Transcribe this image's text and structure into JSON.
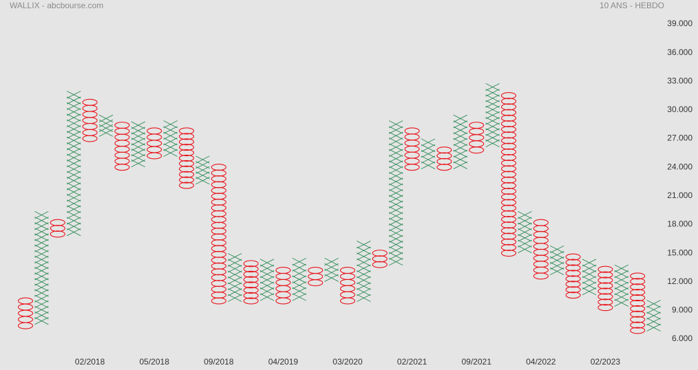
{
  "chart_data": {
    "type": "point-and-figure",
    "title": "WALLIX - abcbourse.com",
    "subtitle": "10 ANS - HEBDO",
    "box_size": 0.6,
    "x_color": "#2e8b57",
    "o_color": "#e8141c",
    "ylim": [
      4.5,
      41
    ],
    "yticks": [
      {
        "value": 6,
        "label": "6.000"
      },
      {
        "value": 9,
        "label": "9.000"
      },
      {
        "value": 12,
        "label": "12.000"
      },
      {
        "value": 15,
        "label": "15.000"
      },
      {
        "value": 18,
        "label": "18.000"
      },
      {
        "value": 21,
        "label": "21.000"
      },
      {
        "value": 24,
        "label": "24.000"
      },
      {
        "value": 27,
        "label": "27.000"
      },
      {
        "value": 30,
        "label": "30.000"
      },
      {
        "value": 33,
        "label": "33.000"
      },
      {
        "value": 36,
        "label": "36.000"
      },
      {
        "value": 39,
        "label": "39.000"
      }
    ],
    "categories": [
      null,
      null,
      null,
      null,
      "02/2018",
      null,
      null,
      null,
      "05/2018",
      null,
      null,
      null,
      "09/2018",
      null,
      null,
      null,
      "04/2019",
      null,
      null,
      null,
      "03/2020",
      null,
      null,
      null,
      "02/2021",
      null,
      null,
      null,
      "09/2021",
      null,
      null,
      null,
      "04/2022",
      null,
      null,
      null,
      "02/2023",
      null,
      null,
      null
    ],
    "columns": [
      {
        "kind": "O",
        "low": 7.4,
        "high": 10.0
      },
      {
        "kind": "X",
        "low": 7.9,
        "high": 19.0
      },
      {
        "kind": "O",
        "low": 17.0,
        "high": 18.2
      },
      {
        "kind": "X",
        "low": 17.2,
        "high": 31.6
      },
      {
        "kind": "O",
        "low": 27.0,
        "high": 30.8
      },
      {
        "kind": "X",
        "low": 27.6,
        "high": 29.1
      },
      {
        "kind": "O",
        "low": 24.0,
        "high": 28.4
      },
      {
        "kind": "X",
        "low": 24.4,
        "high": 28.4
      },
      {
        "kind": "O",
        "low": 25.2,
        "high": 27.8
      },
      {
        "kind": "X",
        "low": 25.5,
        "high": 28.5
      },
      {
        "kind": "O",
        "low": 22.1,
        "high": 27.8
      },
      {
        "kind": "X",
        "low": 22.6,
        "high": 24.8
      },
      {
        "kind": "O",
        "low": 10.0,
        "high": 24.0
      },
      {
        "kind": "X",
        "low": 10.3,
        "high": 14.6
      },
      {
        "kind": "O",
        "low": 10.0,
        "high": 13.9
      },
      {
        "kind": "X",
        "low": 10.4,
        "high": 14.0
      },
      {
        "kind": "O",
        "low": 10.0,
        "high": 13.2
      },
      {
        "kind": "X",
        "low": 10.4,
        "high": 14.1
      },
      {
        "kind": "O",
        "low": 11.9,
        "high": 13.2
      },
      {
        "kind": "X",
        "low": 12.4,
        "high": 14.1
      },
      {
        "kind": "O",
        "low": 10.0,
        "high": 13.2
      },
      {
        "kind": "X",
        "low": 10.3,
        "high": 15.9
      },
      {
        "kind": "O",
        "low": 13.8,
        "high": 15.0
      },
      {
        "kind": "X",
        "low": 14.1,
        "high": 28.5
      },
      {
        "kind": "O",
        "low": 24.0,
        "high": 27.8
      },
      {
        "kind": "X",
        "low": 24.2,
        "high": 26.6
      },
      {
        "kind": "O",
        "low": 24.0,
        "high": 25.8
      },
      {
        "kind": "X",
        "low": 24.2,
        "high": 29.1
      },
      {
        "kind": "O",
        "low": 25.8,
        "high": 28.4
      },
      {
        "kind": "X",
        "low": 26.5,
        "high": 32.4
      },
      {
        "kind": "O",
        "low": 15.0,
        "high": 31.5
      },
      {
        "kind": "X",
        "low": 15.4,
        "high": 19.0
      },
      {
        "kind": "O",
        "low": 12.6,
        "high": 18.2
      },
      {
        "kind": "X",
        "low": 13.1,
        "high": 15.4
      },
      {
        "kind": "O",
        "low": 10.6,
        "high": 14.6
      },
      {
        "kind": "X",
        "low": 11.0,
        "high": 14.0
      },
      {
        "kind": "O",
        "low": 9.3,
        "high": 13.3
      },
      {
        "kind": "X",
        "low": 9.8,
        "high": 13.4
      },
      {
        "kind": "O",
        "low": 6.9,
        "high": 12.6
      },
      {
        "kind": "X",
        "low": 7.2,
        "high": 9.7
      }
    ]
  }
}
